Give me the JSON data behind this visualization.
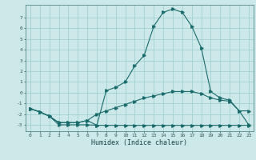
{
  "xlabel": "Humidex (Indice chaleur)",
  "bg_color": "#cce8e8",
  "grid_color": "#99cccc",
  "line_color": "#1a6b6b",
  "x_ticks": [
    0,
    1,
    2,
    3,
    4,
    5,
    6,
    7,
    8,
    9,
    10,
    11,
    12,
    13,
    14,
    15,
    16,
    17,
    18,
    19,
    20,
    21,
    22,
    23
  ],
  "y_ticks": [
    -3,
    -2,
    -1,
    0,
    1,
    2,
    3,
    4,
    5,
    6,
    7
  ],
  "xlim": [
    -0.5,
    23.5
  ],
  "ylim": [
    -3.6,
    8.2
  ],
  "series1": [
    [
      0,
      -1.5
    ],
    [
      1,
      -1.8
    ],
    [
      2,
      -2.2
    ],
    [
      3,
      -3.0
    ],
    [
      4,
      -3.0
    ],
    [
      5,
      -3.0
    ],
    [
      6,
      -3.0
    ],
    [
      7,
      -3.05
    ],
    [
      8,
      -3.05
    ],
    [
      9,
      -3.05
    ],
    [
      10,
      -3.05
    ],
    [
      11,
      -3.05
    ],
    [
      12,
      -3.05
    ],
    [
      13,
      -3.05
    ],
    [
      14,
      -3.05
    ],
    [
      15,
      -3.05
    ],
    [
      16,
      -3.05
    ],
    [
      17,
      -3.05
    ],
    [
      18,
      -3.05
    ],
    [
      19,
      -3.05
    ],
    [
      20,
      -3.05
    ],
    [
      21,
      -3.05
    ],
    [
      22,
      -3.05
    ],
    [
      23,
      -3.05
    ]
  ],
  "series2": [
    [
      0,
      -1.5
    ],
    [
      1,
      -1.8
    ],
    [
      2,
      -2.2
    ],
    [
      3,
      -2.8
    ],
    [
      4,
      -2.8
    ],
    [
      5,
      -2.8
    ],
    [
      6,
      -2.6
    ],
    [
      7,
      -2.0
    ],
    [
      8,
      -1.7
    ],
    [
      9,
      -1.4
    ],
    [
      10,
      -1.1
    ],
    [
      11,
      -0.8
    ],
    [
      12,
      -0.5
    ],
    [
      13,
      -0.3
    ],
    [
      14,
      -0.1
    ],
    [
      15,
      0.1
    ],
    [
      16,
      0.1
    ],
    [
      17,
      0.1
    ],
    [
      18,
      -0.1
    ],
    [
      19,
      -0.5
    ],
    [
      20,
      -0.7
    ],
    [
      21,
      -0.8
    ],
    [
      22,
      -1.7
    ],
    [
      23,
      -1.7
    ]
  ],
  "series3": [
    [
      0,
      -1.5
    ],
    [
      1,
      -1.8
    ],
    [
      2,
      -2.2
    ],
    [
      3,
      -2.8
    ],
    [
      4,
      -2.8
    ],
    [
      5,
      -2.8
    ],
    [
      6,
      -2.6
    ],
    [
      7,
      -3.05
    ],
    [
      8,
      0.2
    ],
    [
      9,
      0.5
    ],
    [
      10,
      1.0
    ],
    [
      11,
      2.5
    ],
    [
      12,
      3.5
    ],
    [
      13,
      6.2
    ],
    [
      14,
      7.5
    ],
    [
      15,
      7.8
    ],
    [
      16,
      7.5
    ],
    [
      17,
      6.2
    ],
    [
      18,
      4.2
    ],
    [
      19,
      0.1
    ],
    [
      20,
      -0.5
    ],
    [
      21,
      -0.7
    ],
    [
      22,
      -1.7
    ],
    [
      23,
      -3.0
    ]
  ]
}
